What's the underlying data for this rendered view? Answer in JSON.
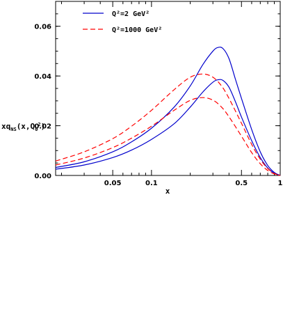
{
  "chart_data": {
    "type": "line",
    "xlabel": "x",
    "ylabel": "xq_NS(x,Q_0^2)",
    "xscale": "log",
    "xlim": [
      0.018,
      1.0
    ],
    "ylim": [
      0.0,
      0.07
    ],
    "x_ticks": [
      {
        "value": 0.05,
        "label": "0.05"
      },
      {
        "value": 0.1,
        "label": "0.1"
      },
      {
        "value": 0.5,
        "label": "0.5"
      },
      {
        "value": 1.0,
        "label": "1"
      }
    ],
    "y_ticks": [
      {
        "value": 0.0,
        "label": "0.00"
      },
      {
        "value": 0.02,
        "label": "0.02"
      },
      {
        "value": 0.04,
        "label": "0.04"
      },
      {
        "value": 0.06,
        "label": "0.06"
      }
    ],
    "grid": false,
    "legend_placement": "top-left",
    "legend": [
      {
        "label": "Q²=2 GeV²",
        "color": "#0000cc",
        "dash": "solid"
      },
      {
        "label": "Q²=1000 GeV²",
        "color": "#ff0000",
        "dash": "dashed"
      }
    ],
    "series": [
      {
        "name": "Q²=2 GeV²",
        "color": "#0000cc",
        "dash": "solid",
        "points": [
          [
            0.018,
            0.0032
          ],
          [
            0.03,
            0.0055
          ],
          [
            0.05,
            0.0095
          ],
          [
            0.07,
            0.0135
          ],
          [
            0.1,
            0.019
          ],
          [
            0.15,
            0.0275
          ],
          [
            0.2,
            0.036
          ],
          [
            0.25,
            0.0445
          ],
          [
            0.3,
            0.05
          ],
          [
            0.33,
            0.0515
          ],
          [
            0.36,
            0.051
          ],
          [
            0.4,
            0.047
          ],
          [
            0.45,
            0.0385
          ],
          [
            0.5,
            0.031
          ],
          [
            0.6,
            0.0185
          ],
          [
            0.7,
            0.0095
          ],
          [
            0.8,
            0.004
          ],
          [
            0.9,
            0.0012
          ],
          [
            1.0,
            0.0
          ]
        ]
      },
      {
        "name": "Q²=2 GeV²",
        "color": "#0000cc",
        "dash": "solid",
        "points": [
          [
            0.018,
            0.0025
          ],
          [
            0.03,
            0.0042
          ],
          [
            0.05,
            0.0072
          ],
          [
            0.07,
            0.0102
          ],
          [
            0.1,
            0.0145
          ],
          [
            0.15,
            0.0208
          ],
          [
            0.2,
            0.0275
          ],
          [
            0.25,
            0.0335
          ],
          [
            0.3,
            0.0375
          ],
          [
            0.33,
            0.0385
          ],
          [
            0.36,
            0.0382
          ],
          [
            0.4,
            0.0355
          ],
          [
            0.45,
            0.0295
          ],
          [
            0.5,
            0.0235
          ],
          [
            0.6,
            0.014
          ],
          [
            0.7,
            0.0072
          ],
          [
            0.8,
            0.003
          ],
          [
            0.9,
            0.0009
          ],
          [
            1.0,
            0.0
          ]
        ]
      },
      {
        "name": "Q²=1000 GeV²",
        "color": "#ff0000",
        "dash": "dashed",
        "points": [
          [
            0.018,
            0.0058
          ],
          [
            0.03,
            0.0095
          ],
          [
            0.05,
            0.0148
          ],
          [
            0.07,
            0.0198
          ],
          [
            0.1,
            0.0262
          ],
          [
            0.15,
            0.0345
          ],
          [
            0.2,
            0.0395
          ],
          [
            0.25,
            0.0408
          ],
          [
            0.3,
            0.0395
          ],
          [
            0.35,
            0.036
          ],
          [
            0.4,
            0.031
          ],
          [
            0.5,
            0.021
          ],
          [
            0.6,
            0.0125
          ],
          [
            0.7,
            0.0065
          ],
          [
            0.8,
            0.0028
          ],
          [
            0.9,
            0.0008
          ],
          [
            1.0,
            0.0
          ]
        ]
      },
      {
        "name": "Q²=1000 GeV²",
        "color": "#ff0000",
        "dash": "dashed",
        "points": [
          [
            0.018,
            0.0042
          ],
          [
            0.03,
            0.007
          ],
          [
            0.05,
            0.0112
          ],
          [
            0.07,
            0.015
          ],
          [
            0.1,
            0.0198
          ],
          [
            0.15,
            0.0262
          ],
          [
            0.2,
            0.0302
          ],
          [
            0.25,
            0.0313
          ],
          [
            0.3,
            0.0303
          ],
          [
            0.35,
            0.0275
          ],
          [
            0.4,
            0.0236
          ],
          [
            0.5,
            0.0158
          ],
          [
            0.6,
            0.0092
          ],
          [
            0.7,
            0.0047
          ],
          [
            0.8,
            0.002
          ],
          [
            0.9,
            0.0006
          ],
          [
            1.0,
            0.0
          ]
        ]
      }
    ]
  }
}
